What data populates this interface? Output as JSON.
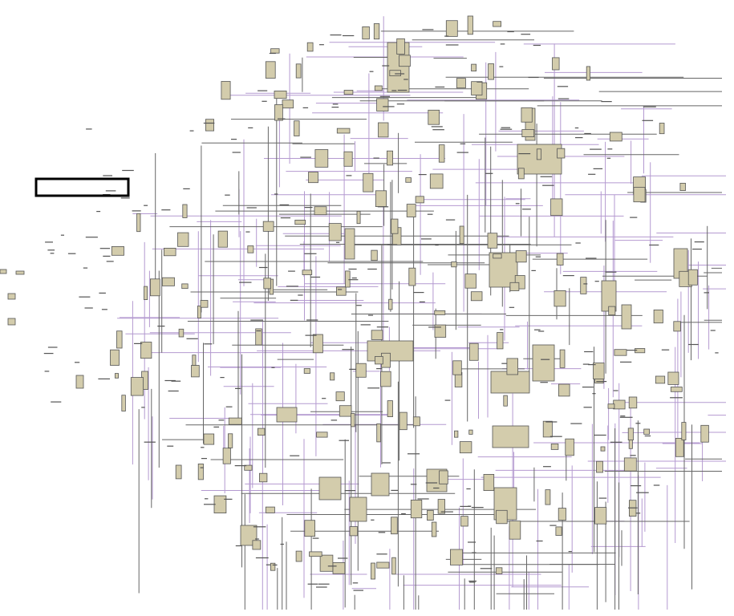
{
  "diagram": {
    "type": "schematic-netlist-view",
    "colors": {
      "background": "#ffffff",
      "block_fill": "#d3ccac",
      "block_stroke": "#555555",
      "wire_primary": "#b49ad0",
      "wire_secondary": "#666666",
      "selection": "#000000"
    },
    "selection_visible": true
  }
}
